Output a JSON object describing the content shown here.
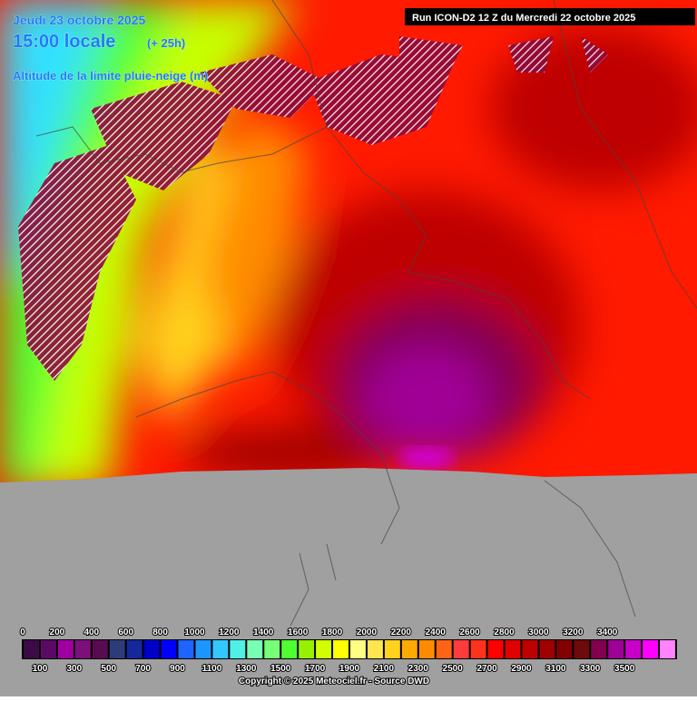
{
  "header": {
    "date": "Jeudi 23 octobre 2025",
    "time": "15:00 locale",
    "lead": "(+ 25h)",
    "parameter": "Altitude de la limite pluie-neige (m)",
    "run": "Run ICON-D2 12 Z du Mercredi 22 octobre 2025"
  },
  "legend": {
    "colors": [
      "#3c0a46",
      "#5a0a64",
      "#a000a0",
      "#7d0f7d",
      "#5a0a50",
      "#2d3c78",
      "#14289b",
      "#0000c8",
      "#0000ff",
      "#1e64ff",
      "#1e96ff",
      "#32c8ff",
      "#50f0e6",
      "#78ffb4",
      "#78ff78",
      "#50ff32",
      "#96f000",
      "#d2ff00",
      "#ffff00",
      "#ffff82",
      "#ffe650",
      "#ffd21e",
      "#ffaa00",
      "#ff8c00",
      "#ff6414",
      "#ff3c3c",
      "#ff321e",
      "#ff0000",
      "#e10000",
      "#be0000",
      "#a00000",
      "#820000",
      "#6e0a0a",
      "#820050",
      "#a00096",
      "#c800c8",
      "#ff00ff",
      "#ff82ff"
    ],
    "top_labels": [
      "0",
      "200",
      "400",
      "600",
      "800",
      "1000",
      "1200",
      "1400",
      "1600",
      "1800",
      "2000",
      "2200",
      "2400",
      "2600",
      "2800",
      "3000",
      "3200",
      "3400"
    ],
    "bottom_labels": [
      "100",
      "300",
      "500",
      "700",
      "900",
      "1100",
      "1300",
      "1500",
      "1700",
      "1900",
      "2100",
      "2300",
      "2500",
      "2700",
      "2900",
      "3100",
      "3300",
      "3500"
    ]
  },
  "footer": {
    "copyright": "Copyright © 2025 Meteociel.fr - Source DWD"
  }
}
